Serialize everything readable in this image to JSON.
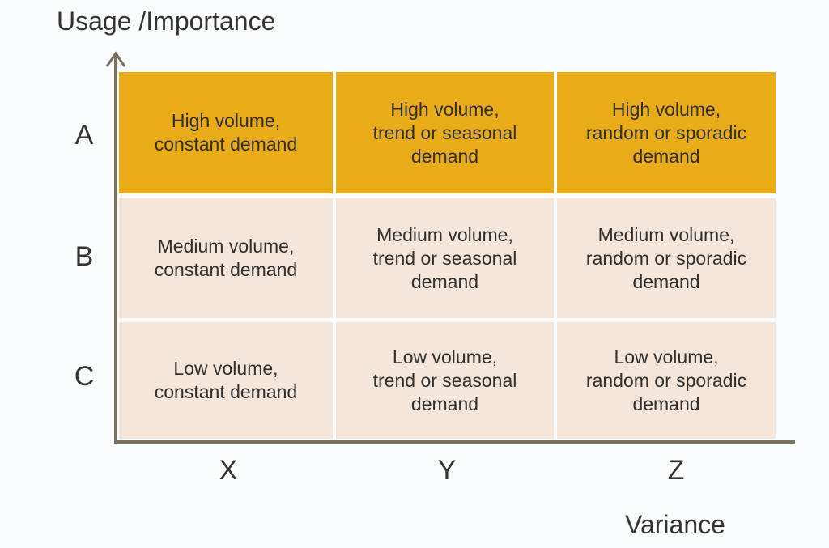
{
  "y_axis_title": "Usage /Importance",
  "x_axis_title": "Variance",
  "rows": [
    {
      "label": "A",
      "cells": [
        "High volume,\nconstant demand",
        "High volume,\ntrend or seasonal\ndemand",
        "High volume,\nrandom or sporadic\ndemand"
      ]
    },
    {
      "label": "B",
      "cells": [
        "Medium volume,\nconstant demand",
        "Medium volume,\ntrend or seasonal\ndemand",
        "Medium volume,\nrandom or sporadic\ndemand"
      ]
    },
    {
      "label": "C",
      "cells": [
        "Low volume,\nconstant demand",
        "Low volume,\ntrend or seasonal\ndemand",
        "Low volume,\nrandom or sporadic\ndemand"
      ]
    }
  ],
  "columns": [
    "X",
    "Y",
    "Z"
  ],
  "colors": {
    "highlight_row": "#e9ab17",
    "other_rows": "#f6e5d9",
    "axis": "#7a7060"
  }
}
